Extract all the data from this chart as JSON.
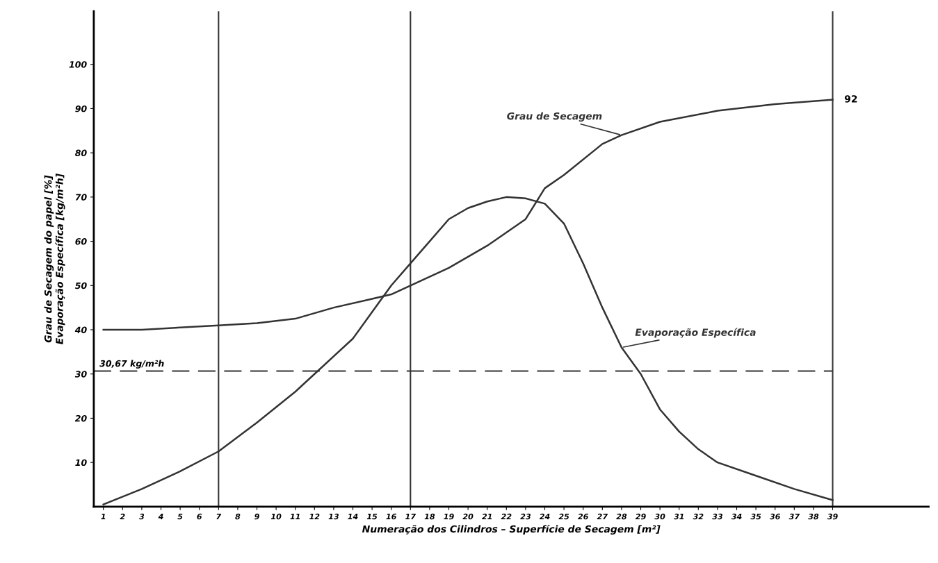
{
  "chart_data": {
    "type": "line",
    "xlabel": "Numeração dos Cilindros – Superfície de Secagem [m²]",
    "ylabel": "Grau de Secagem do papel [%]\nEvaporação Específica [kg/m²h]",
    "series": [
      {
        "name": "Grau de Secagem",
        "color": "#333333",
        "x": [
          1,
          3,
          5,
          7,
          9,
          11,
          13,
          15,
          16,
          17,
          19,
          21,
          23,
          24,
          25,
          27,
          28,
          30,
          33,
          36,
          39
        ],
        "values": [
          40,
          40,
          40.5,
          41,
          41.5,
          42.5,
          45,
          47,
          48,
          50,
          54,
          59,
          65,
          72,
          75,
          82,
          84,
          87,
          89.5,
          91,
          92
        ]
      },
      {
        "name": "Evaporação Específica",
        "color": "#333333",
        "x": [
          1,
          3,
          5,
          7,
          9,
          11,
          12,
          14,
          15,
          16,
          17,
          18,
          19,
          20,
          21,
          22,
          23,
          24,
          25,
          26,
          27,
          28,
          29,
          30,
          31,
          32,
          33,
          35,
          37,
          39
        ],
        "values": [
          0.5,
          4,
          8,
          12.5,
          19,
          26,
          30,
          38,
          44,
          50,
          55,
          60,
          65,
          67.5,
          69,
          70,
          69.7,
          68.5,
          64,
          55,
          45,
          36,
          30,
          22,
          17,
          13,
          10,
          7,
          4,
          1.5
        ]
      }
    ],
    "annotations": [
      {
        "text": "92",
        "x": 39,
        "y": 92
      }
    ],
    "ref_lines": [
      {
        "axis": "y",
        "value": 30.67,
        "label": "30,67 kg/m²h",
        "color": "#333333",
        "line_style": "dashed"
      },
      {
        "axis": "x",
        "value": 7,
        "color": "#333333",
        "line_style": "solid"
      },
      {
        "axis": "x",
        "value": 17,
        "color": "#333333",
        "line_style": "solid"
      },
      {
        "axis": "x",
        "value": 39,
        "color": "#333333",
        "line_style": "solid"
      }
    ],
    "xlim": [
      0.5,
      44
    ],
    "ylim": [
      0,
      112
    ],
    "xticks": [
      1,
      2,
      3,
      4,
      5,
      6,
      7,
      8,
      9,
      10,
      11,
      12,
      13,
      14,
      15,
      16,
      17,
      18,
      19,
      20,
      21,
      22,
      23,
      24,
      25,
      26,
      27,
      28,
      29,
      30,
      31,
      32,
      33,
      34,
      35,
      36,
      37,
      38,
      39
    ],
    "yticks": [
      10,
      20,
      30,
      40,
      50,
      60,
      70,
      80,
      90,
      100
    ],
    "grid": false,
    "legend": false,
    "marker": "none",
    "line_style": "solid"
  }
}
